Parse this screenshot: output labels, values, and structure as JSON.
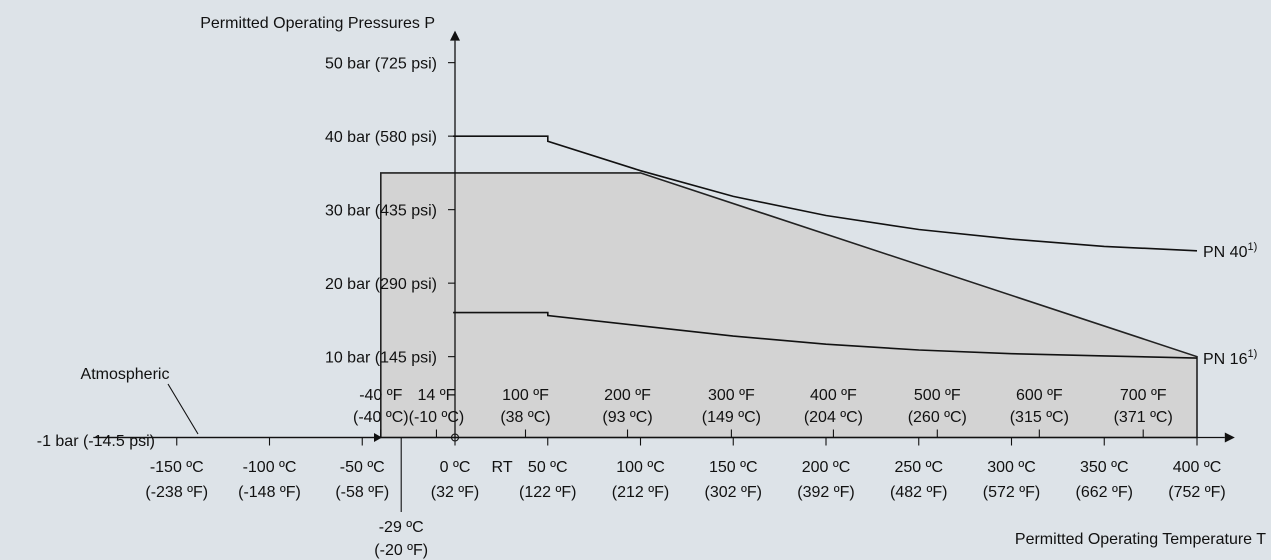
{
  "chart_data": {
    "type": "line",
    "title": "",
    "ylabel": "Permitted Operating Pressures P",
    "xlabel": "Permitted Operating Temperature T",
    "xlim": [
      -195,
      415
    ],
    "ylim": [
      -1,
      53
    ],
    "grid": false,
    "y_ticks": [
      {
        "value": 10,
        "label": "10 bar (145 psi)"
      },
      {
        "value": 20,
        "label": "20 bar (290 psi)"
      },
      {
        "value": 30,
        "label": "30 bar (435 psi)"
      },
      {
        "value": 40,
        "label": "40 bar (580 psi)"
      },
      {
        "value": 50,
        "label": "50 bar (725 psi)"
      }
    ],
    "x_ticks_c": [
      {
        "value": -150,
        "line1": "-150 ºC",
        "line2": "(-238 ºF)"
      },
      {
        "value": -100,
        "line1": "-100 ºC",
        "line2": "(-148 ºF)"
      },
      {
        "value": -50,
        "line1": "-50 ºC",
        "line2": "(-58 ºF)"
      },
      {
        "value": 0,
        "line1": "0 ºC",
        "line2": "(32 ºF)"
      },
      {
        "value": 50,
        "line1": "50 ºC",
        "line2": "(122 ºF)"
      },
      {
        "value": 100,
        "line1": "100 ºC",
        "line2": "(212 ºF)"
      },
      {
        "value": 150,
        "line1": "150 ºC",
        "line2": "(302 ºF)"
      },
      {
        "value": 200,
        "line1": "200 ºC",
        "line2": "(392 ºF)"
      },
      {
        "value": 250,
        "line1": "250 ºC",
        "line2": "(482 ºF)"
      },
      {
        "value": 300,
        "line1": "300 ºC",
        "line2": "(572 ºF)"
      },
      {
        "value": 350,
        "line1": "350 ºC",
        "line2": "(662 ºF)"
      },
      {
        "value": 400,
        "line1": "400 ºC",
        "line2": "(752 ºF)"
      }
    ],
    "rt_label": {
      "value": 27,
      "label": "RT"
    },
    "x_ticks_f": [
      {
        "value": -40,
        "line1": "-40 ºF",
        "line2": "(-40 ºC)"
      },
      {
        "value": -10,
        "line1": "14 ºF",
        "line2": "(-10 ºC)"
      },
      {
        "value": 38,
        "line1": "100 ºF",
        "line2": "(38 ºC)"
      },
      {
        "value": 93,
        "line1": "200 ºF",
        "line2": "(93 ºC)"
      },
      {
        "value": 149,
        "line1": "300 ºF",
        "line2": "(149 ºC)"
      },
      {
        "value": 204,
        "line1": "400 ºF",
        "line2": "(204 ºC)"
      },
      {
        "value": 260,
        "line1": "500 ºF",
        "line2": "(260 ºC)"
      },
      {
        "value": 315,
        "line1": "600 ºF",
        "line2": "(315 ºC)"
      },
      {
        "value": 371,
        "line1": "700 ºF",
        "line2": "(371 ºC)"
      }
    ],
    "special_label": {
      "value": -29,
      "line1": "-29 ºC",
      "line2": "(-20 ºF)"
    },
    "atmospheric": {
      "value": -1,
      "label": "-1 bar (-14.5 psi)",
      "note": "Atmospheric",
      "from": -195,
      "to": -40
    },
    "shaded_region": {
      "x": [
        -40,
        -40,
        100,
        400,
        400
      ],
      "y": [
        -1,
        35,
        35,
        10,
        -1
      ]
    },
    "series": [
      {
        "name": "PN 40",
        "superscript": "1)",
        "x": [
          -1,
          50,
          50,
          100,
          150,
          200,
          250,
          300,
          350,
          400
        ],
        "y": [
          40,
          40,
          39.3,
          35.3,
          31.8,
          29.2,
          27.3,
          26.0,
          25.0,
          24.4
        ]
      },
      {
        "name": "PN 16",
        "superscript": "1)",
        "x": [
          -1,
          50,
          50,
          100,
          150,
          200,
          250,
          300,
          350,
          400
        ],
        "y": [
          16,
          16,
          15.6,
          14.2,
          12.8,
          11.7,
          10.9,
          10.4,
          10.1,
          9.8
        ]
      }
    ]
  }
}
